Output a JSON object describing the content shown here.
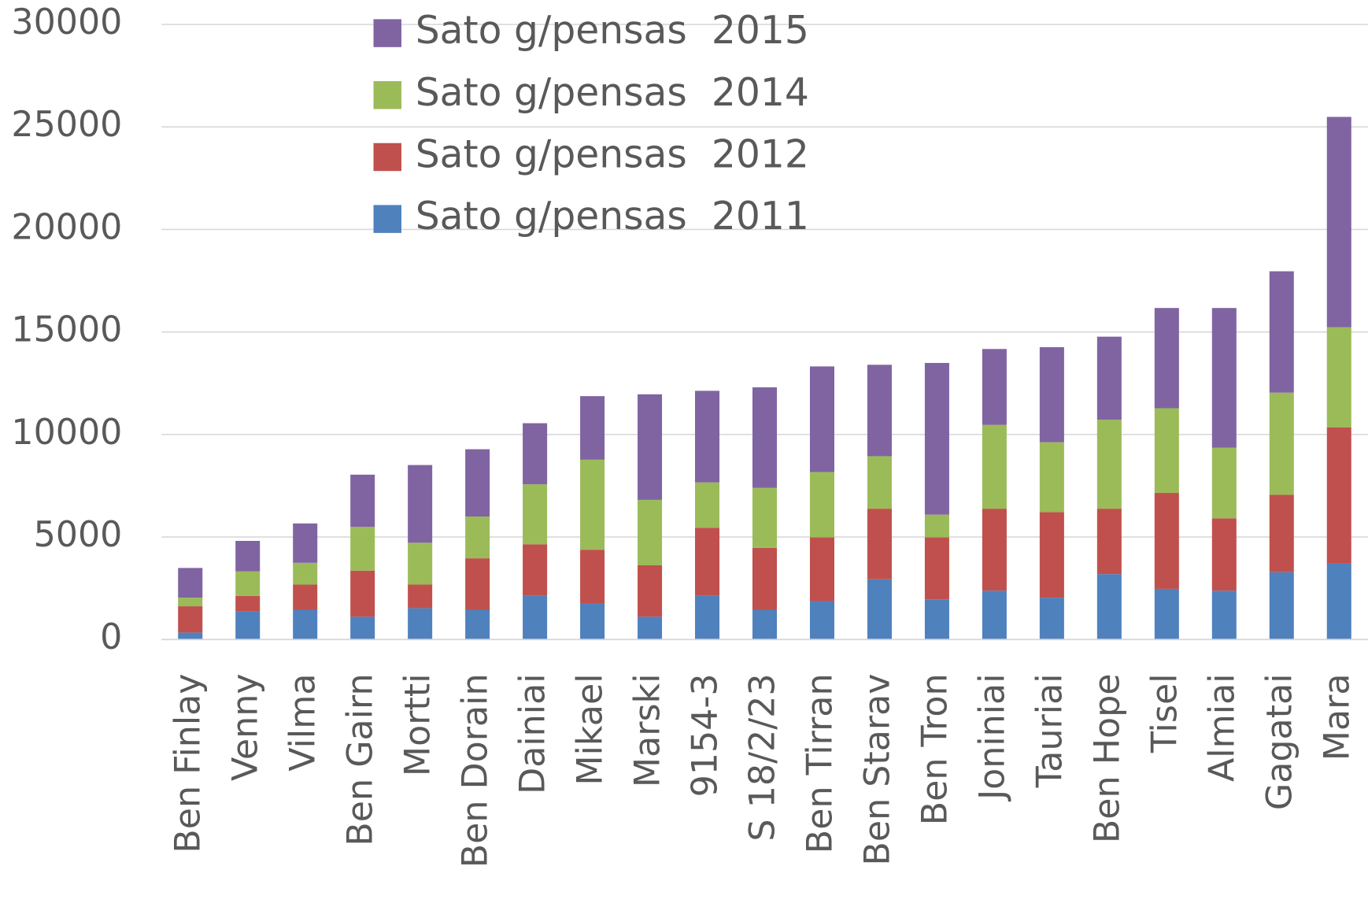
{
  "chart_data": {
    "type": "stacked_bar",
    "categories": [
      "Ben Finlay",
      "Venny",
      "Vilma",
      "Ben Gairn",
      "Mortti",
      "Ben Dorain",
      "Dainiai",
      "Mikael",
      "Marski",
      "9154-3",
      "S 18/2/23",
      "Ben Tirran",
      "Ben Starav",
      "Ben Tron",
      "Joniniai",
      "Tauriai",
      "Ben Hope",
      "Tisel",
      "Almiai",
      "Gagatai",
      "Mara"
    ],
    "series": [
      {
        "name": "Sato g/pensas  2011",
        "color": "#4f81bd",
        "values": [
          340,
          1360,
          1450,
          1110,
          1530,
          1450,
          2130,
          1740,
          1110,
          2130,
          1450,
          1870,
          2940,
          1960,
          2380,
          2040,
          3190,
          2470,
          2380,
          3280,
          3700
        ]
      },
      {
        "name": "Sato g/pensas  2012",
        "color": "#c0504d",
        "values": [
          1280,
          770,
          1230,
          2250,
          1150,
          2510,
          2510,
          2640,
          2510,
          3320,
          3020,
          3110,
          3440,
          3020,
          4000,
          4170,
          3190,
          4680,
          3530,
          3780,
          6640
        ]
      },
      {
        "name": "Sato g/pensas  2014",
        "color": "#9bbb59",
        "values": [
          420,
          1190,
          1060,
          2130,
          2040,
          2040,
          2930,
          4390,
          3190,
          2210,
          2930,
          3190,
          2560,
          1110,
          4090,
          3410,
          4340,
          4130,
          3450,
          4980,
          4890
        ]
      },
      {
        "name": "Sato g/pensas  2015",
        "color": "#8064a2",
        "values": [
          1450,
          1490,
          1920,
          2550,
          3790,
          3280,
          2980,
          3100,
          5150,
          4470,
          4900,
          5150,
          4460,
          7400,
          3700,
          4640,
          4050,
          4890,
          6810,
          5920,
          10260
        ]
      }
    ],
    "ylim": [
      0,
      30000
    ],
    "yticks": [
      0,
      5000,
      10000,
      15000,
      20000,
      25000,
      30000
    ],
    "grid": true,
    "legend": "top"
  }
}
